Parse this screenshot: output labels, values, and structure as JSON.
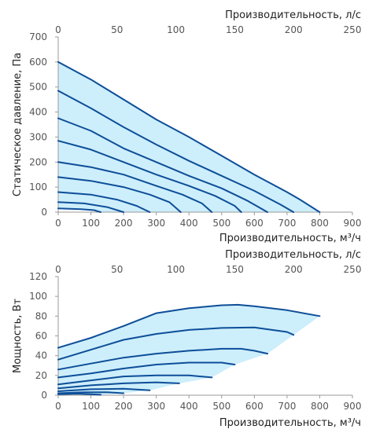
{
  "colors": {
    "fill": "#cdeefb",
    "curve": "#0d4e98",
    "axis": "#9a9a9a",
    "text": "#333333"
  },
  "chart_data": [
    {
      "type": "line",
      "xlabel_bottom": "Производительность, м³/ч",
      "xlabel_top": "Производительность, л/с",
      "ylabel": "Статическое давление, Па",
      "xlim": [
        0,
        900
      ],
      "xlim_top": [
        0,
        250
      ],
      "ylim": [
        0,
        700
      ],
      "xticks": [
        0,
        100,
        200,
        300,
        400,
        500,
        600,
        700,
        800,
        900
      ],
      "xticks_top": [
        0,
        50,
        100,
        150,
        200,
        250
      ],
      "yticks": [
        0,
        100,
        200,
        300,
        400,
        500,
        600,
        700
      ],
      "grid": false,
      "envelope_fill": true,
      "series": [
        {
          "points": [
            [
              0,
              600
            ],
            [
              100,
              530
            ],
            [
              200,
              450
            ],
            [
              300,
              370
            ],
            [
              400,
              300
            ],
            [
              500,
              225
            ],
            [
              600,
              150
            ],
            [
              700,
              80
            ],
            [
              740,
              50
            ],
            [
              800,
              0
            ]
          ]
        },
        {
          "points": [
            [
              0,
              485
            ],
            [
              100,
              415
            ],
            [
              200,
              340
            ],
            [
              300,
              270
            ],
            [
              400,
              205
            ],
            [
              500,
              145
            ],
            [
              600,
              85
            ],
            [
              680,
              30
            ],
            [
              720,
              0
            ]
          ]
        },
        {
          "points": [
            [
              0,
              375
            ],
            [
              100,
              325
            ],
            [
              200,
              255
            ],
            [
              300,
              200
            ],
            [
              400,
              145
            ],
            [
              500,
              95
            ],
            [
              580,
              45
            ],
            [
              640,
              0
            ]
          ]
        },
        {
          "points": [
            [
              0,
              285
            ],
            [
              100,
              250
            ],
            [
              200,
              200
            ],
            [
              300,
              150
            ],
            [
              400,
              105
            ],
            [
              480,
              65
            ],
            [
              540,
              25
            ],
            [
              560,
              0
            ]
          ]
        },
        {
          "points": [
            [
              0,
              200
            ],
            [
              100,
              180
            ],
            [
              200,
              150
            ],
            [
              300,
              105
            ],
            [
              380,
              70
            ],
            [
              440,
              35
            ],
            [
              470,
              0
            ]
          ]
        },
        {
          "points": [
            [
              0,
              140
            ],
            [
              100,
              125
            ],
            [
              200,
              100
            ],
            [
              280,
              70
            ],
            [
              340,
              40
            ],
            [
              375,
              0
            ]
          ]
        },
        {
          "points": [
            [
              0,
              80
            ],
            [
              100,
              70
            ],
            [
              180,
              50
            ],
            [
              240,
              25
            ],
            [
              280,
              0
            ]
          ]
        },
        {
          "points": [
            [
              0,
              40
            ],
            [
              80,
              35
            ],
            [
              150,
              20
            ],
            [
              200,
              0
            ]
          ]
        },
        {
          "points": [
            [
              0,
              15
            ],
            [
              70,
              12
            ],
            [
              110,
              8
            ],
            [
              130,
              0
            ]
          ]
        }
      ]
    },
    {
      "type": "line",
      "xlabel_bottom": "Производительность, м³/ч",
      "xlabel_top": "Производительность, л/с",
      "ylabel": "Мощность, Вт",
      "xlim": [
        0,
        900
      ],
      "xlim_top": [
        0,
        250
      ],
      "ylim": [
        0,
        120
      ],
      "xticks": [
        0,
        100,
        200,
        300,
        400,
        500,
        600,
        700,
        800,
        900
      ],
      "xticks_top": [
        0,
        50,
        100,
        150,
        200,
        250
      ],
      "yticks": [
        0,
        20,
        40,
        60,
        80,
        100,
        120
      ],
      "grid": false,
      "envelope_fill": true,
      "series": [
        {
          "points": [
            [
              0,
              48
            ],
            [
              100,
              58
            ],
            [
              200,
              70
            ],
            [
              300,
              83
            ],
            [
              400,
              88
            ],
            [
              500,
              91
            ],
            [
              550,
              91.5
            ],
            [
              600,
              90
            ],
            [
              700,
              86
            ],
            [
              800,
              80
            ]
          ]
        },
        {
          "points": [
            [
              0,
              36
            ],
            [
              100,
              46
            ],
            [
              200,
              56
            ],
            [
              300,
              62
            ],
            [
              400,
              66
            ],
            [
              500,
              68
            ],
            [
              600,
              68.5
            ],
            [
              700,
              64
            ],
            [
              720,
              61
            ]
          ]
        },
        {
          "points": [
            [
              0,
              26
            ],
            [
              100,
              32
            ],
            [
              200,
              38
            ],
            [
              300,
              42
            ],
            [
              400,
              45
            ],
            [
              500,
              47
            ],
            [
              560,
              47
            ],
            [
              600,
              45
            ],
            [
              640,
              42
            ]
          ]
        },
        {
          "points": [
            [
              0,
              18
            ],
            [
              100,
              22
            ],
            [
              200,
              27
            ],
            [
              300,
              31
            ],
            [
              400,
              33
            ],
            [
              500,
              33
            ],
            [
              540,
              31
            ]
          ]
        },
        {
          "points": [
            [
              0,
              11
            ],
            [
              100,
              15
            ],
            [
              200,
              19
            ],
            [
              300,
              20
            ],
            [
              400,
              20
            ],
            [
              470,
              18
            ]
          ]
        },
        {
          "points": [
            [
              0,
              7
            ],
            [
              100,
              10
            ],
            [
              200,
              12
            ],
            [
              300,
              13
            ],
            [
              370,
              12
            ]
          ]
        },
        {
          "points": [
            [
              0,
              4
            ],
            [
              100,
              6
            ],
            [
              200,
              6.5
            ],
            [
              280,
              5
            ]
          ]
        },
        {
          "points": [
            [
              0,
              2
            ],
            [
              80,
              3
            ],
            [
              150,
              3
            ],
            [
              200,
              2
            ]
          ]
        },
        {
          "points": [
            [
              0,
              1
            ],
            [
              60,
              1.5
            ],
            [
              100,
              1
            ],
            [
              130,
              0.5
            ]
          ]
        }
      ]
    }
  ]
}
